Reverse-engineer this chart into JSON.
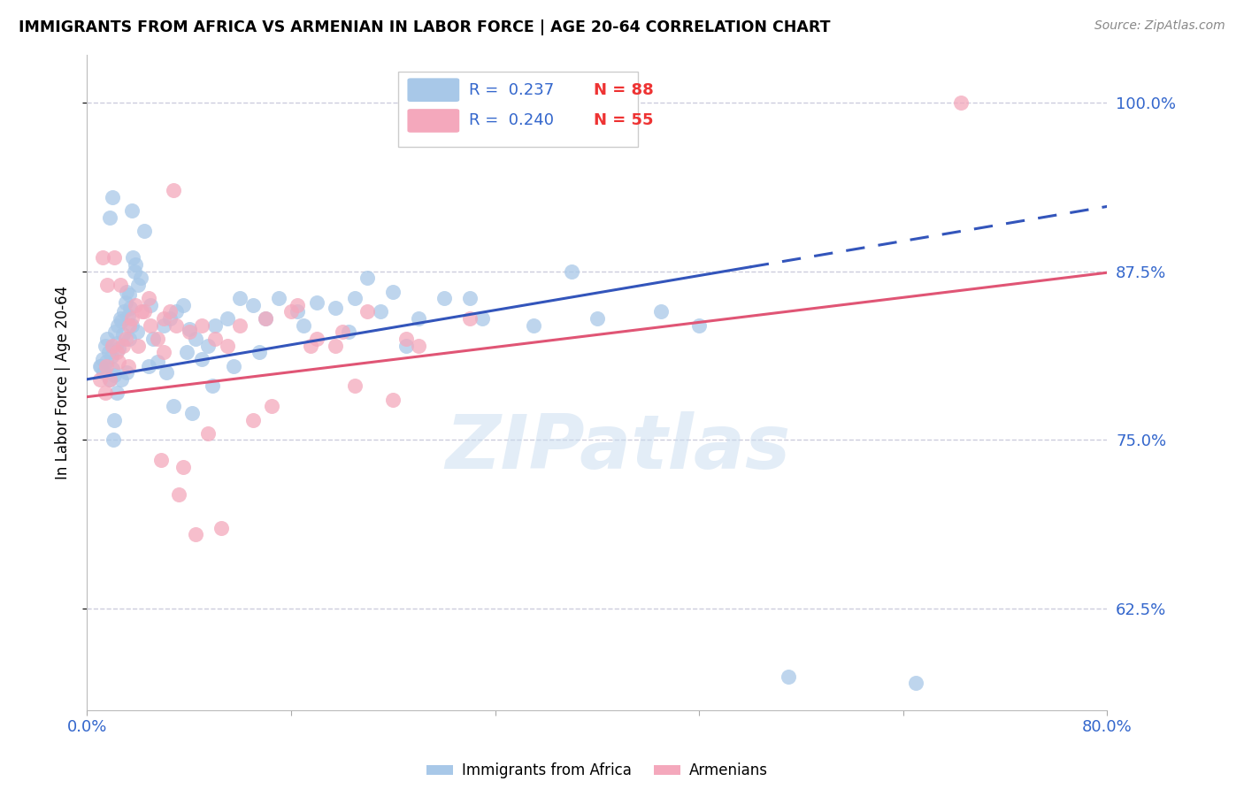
{
  "title": "IMMIGRANTS FROM AFRICA VS ARMENIAN IN LABOR FORCE | AGE 20-64 CORRELATION CHART",
  "source": "Source: ZipAtlas.com",
  "ylabel": "In Labor Force | Age 20-64",
  "xlim": [
    0.0,
    80.0
  ],
  "ylim": [
    55.0,
    103.5
  ],
  "yticks": [
    62.5,
    75.0,
    87.5,
    100.0
  ],
  "blue_color": "#A8C8E8",
  "pink_color": "#F4A8BC",
  "blue_line_color": "#3355BB",
  "pink_line_color": "#E05575",
  "grid_color": "#CCCCDD",
  "background_color": "#FFFFFF",
  "legend_R_blue": "R =  0.237",
  "legend_N_blue": "N = 88",
  "legend_R_pink": "R =  0.240",
  "legend_N_pink": "N = 55",
  "watermark": "ZIPatlas",
  "blue_intercept": 79.5,
  "blue_slope": 0.16,
  "pink_intercept": 78.2,
  "pink_slope": 0.115,
  "blue_solid_end": 52.0,
  "blue_x": [
    1.0,
    1.2,
    1.3,
    1.5,
    1.6,
    1.7,
    1.8,
    1.9,
    2.0,
    2.1,
    2.2,
    2.3,
    2.4,
    2.5,
    2.6,
    2.7,
    2.8,
    2.9,
    3.0,
    3.1,
    3.2,
    3.3,
    3.4,
    3.5,
    3.6,
    3.7,
    3.8,
    4.0,
    4.2,
    4.5,
    5.0,
    5.5,
    6.0,
    6.5,
    7.0,
    7.5,
    8.0,
    8.5,
    9.0,
    10.0,
    11.0,
    12.0,
    13.0,
    14.0,
    15.0,
    16.5,
    18.0,
    19.5,
    21.0,
    23.0,
    25.0,
    30.0,
    35.0,
    40.0,
    45.0,
    38.0,
    48.0,
    28.0,
    2.0,
    1.8,
    3.5,
    4.8,
    6.2,
    7.8,
    9.5,
    2.3,
    2.7,
    3.1,
    1.4,
    1.1,
    2.15,
    2.05,
    3.3,
    3.9,
    5.2,
    6.8,
    8.2,
    9.8,
    11.5,
    13.5,
    17.0,
    20.5,
    31.0,
    26.0,
    55.0,
    65.0,
    24.0,
    22.0
  ],
  "blue_y": [
    80.5,
    81.0,
    80.0,
    80.8,
    82.5,
    81.5,
    79.5,
    81.2,
    80.3,
    79.8,
    83.0,
    82.2,
    83.5,
    81.8,
    84.0,
    83.8,
    82.8,
    84.5,
    85.2,
    86.0,
    84.2,
    85.8,
    84.8,
    83.5,
    88.5,
    87.5,
    88.0,
    86.5,
    87.0,
    90.5,
    85.0,
    80.8,
    83.5,
    84.0,
    84.5,
    85.0,
    83.2,
    82.5,
    81.0,
    83.5,
    84.0,
    85.5,
    85.0,
    84.0,
    85.5,
    84.5,
    85.2,
    84.8,
    85.5,
    84.5,
    82.0,
    85.5,
    83.5,
    84.0,
    84.5,
    87.5,
    83.5,
    85.5,
    93.0,
    91.5,
    92.0,
    80.5,
    80.0,
    81.5,
    82.0,
    78.5,
    79.5,
    80.0,
    82.0,
    80.5,
    76.5,
    75.0,
    82.5,
    83.0,
    82.5,
    77.5,
    77.0,
    79.0,
    80.5,
    81.5,
    83.5,
    83.0,
    84.0,
    84.0,
    57.5,
    57.0,
    86.0,
    87.0
  ],
  "pink_x": [
    1.0,
    1.5,
    2.0,
    2.5,
    3.0,
    3.5,
    4.0,
    4.5,
    5.0,
    5.5,
    6.0,
    6.5,
    7.0,
    8.0,
    9.0,
    10.0,
    11.0,
    12.0,
    14.0,
    16.0,
    18.0,
    20.0,
    22.0,
    25.0,
    30.0,
    1.2,
    1.8,
    2.3,
    2.8,
    3.3,
    3.8,
    4.3,
    4.8,
    5.8,
    7.5,
    9.5,
    13.0,
    16.5,
    19.5,
    24.0,
    2.1,
    2.6,
    3.2,
    1.6,
    1.4,
    8.5,
    10.5,
    14.5,
    6.8,
    17.5,
    7.2,
    6.0,
    68.5,
    26.0,
    21.0
  ],
  "pink_y": [
    79.5,
    80.5,
    82.0,
    80.8,
    82.5,
    84.0,
    82.0,
    84.5,
    83.5,
    82.5,
    84.0,
    84.5,
    83.5,
    83.0,
    83.5,
    82.5,
    82.0,
    83.5,
    84.0,
    84.5,
    82.5,
    83.0,
    84.5,
    82.5,
    84.0,
    88.5,
    79.5,
    81.5,
    82.0,
    83.5,
    85.0,
    84.5,
    85.5,
    73.5,
    73.0,
    75.5,
    76.5,
    85.0,
    82.0,
    78.0,
    88.5,
    86.5,
    80.5,
    86.5,
    78.5,
    68.0,
    68.5,
    77.5,
    93.5,
    82.0,
    71.0,
    81.5,
    100.0,
    82.0,
    79.0
  ]
}
